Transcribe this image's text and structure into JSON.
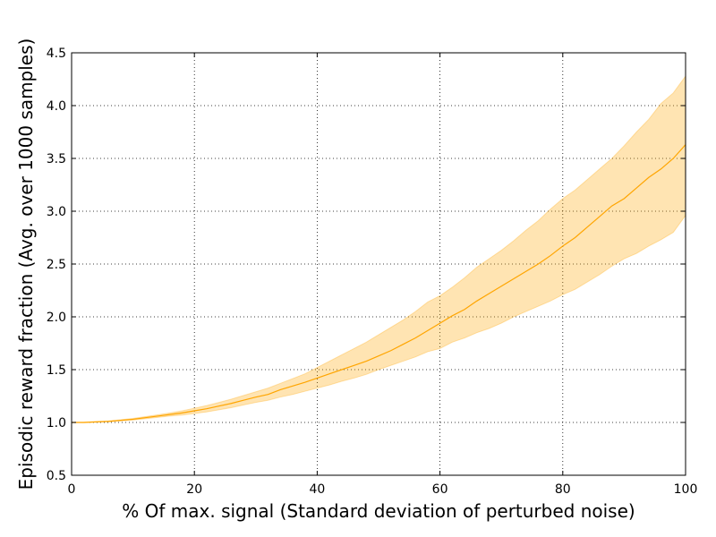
{
  "chart_data": {
    "type": "line",
    "title": "",
    "xlabel": "% Of max. signal (Standard deviation of perturbed noise)",
    "ylabel": "Episodic reward fraction (Avg. over 1000 samples)",
    "xlim": [
      0,
      100
    ],
    "ylim": [
      0.5,
      4.5
    ],
    "x_ticks": [
      0,
      20,
      40,
      60,
      80,
      100
    ],
    "y_ticks": [
      0.5,
      1.0,
      1.5,
      2.0,
      2.5,
      3.0,
      3.5,
      4.0,
      4.5
    ],
    "grid": true,
    "line_color": "#FFA500",
    "band_color": "#FFA500",
    "series": [
      {
        "x": [
          0,
          2,
          4,
          6,
          8,
          10,
          12,
          14,
          16,
          18,
          20,
          22,
          24,
          26,
          28,
          30,
          32,
          34,
          36,
          38,
          40,
          42,
          44,
          46,
          48,
          50,
          52,
          54,
          56,
          58,
          60,
          62,
          64,
          66,
          68,
          70,
          72,
          74,
          76,
          78,
          80,
          82,
          84,
          86,
          88,
          90,
          92,
          94,
          96,
          98,
          100
        ],
        "mean": [
          1.0,
          1.0,
          1.005,
          1.01,
          1.02,
          1.03,
          1.045,
          1.06,
          1.075,
          1.09,
          1.11,
          1.13,
          1.155,
          1.18,
          1.21,
          1.24,
          1.265,
          1.31,
          1.345,
          1.38,
          1.42,
          1.46,
          1.5,
          1.54,
          1.58,
          1.63,
          1.68,
          1.74,
          1.8,
          1.87,
          1.94,
          2.01,
          2.07,
          2.15,
          2.22,
          2.29,
          2.36,
          2.43,
          2.5,
          2.58,
          2.67,
          2.75,
          2.85,
          2.95,
          3.05,
          3.12,
          3.22,
          3.32,
          3.4,
          3.5,
          3.63
        ],
        "upper": [
          1.0,
          1.002,
          1.008,
          1.015,
          1.025,
          1.038,
          1.055,
          1.072,
          1.09,
          1.11,
          1.135,
          1.16,
          1.19,
          1.22,
          1.255,
          1.29,
          1.325,
          1.37,
          1.415,
          1.46,
          1.52,
          1.58,
          1.64,
          1.7,
          1.76,
          1.83,
          1.9,
          1.97,
          2.05,
          2.14,
          2.2,
          2.28,
          2.37,
          2.47,
          2.55,
          2.63,
          2.72,
          2.82,
          2.91,
          3.02,
          3.12,
          3.2,
          3.3,
          3.4,
          3.5,
          3.62,
          3.75,
          3.87,
          4.02,
          4.12,
          4.28
        ],
        "lower": [
          1.0,
          0.998,
          1.002,
          1.005,
          1.015,
          1.022,
          1.035,
          1.048,
          1.06,
          1.07,
          1.085,
          1.1,
          1.12,
          1.14,
          1.165,
          1.19,
          1.21,
          1.24,
          1.265,
          1.295,
          1.325,
          1.355,
          1.39,
          1.42,
          1.455,
          1.5,
          1.54,
          1.58,
          1.62,
          1.67,
          1.7,
          1.76,
          1.8,
          1.85,
          1.89,
          1.94,
          2.0,
          2.05,
          2.1,
          2.15,
          2.21,
          2.26,
          2.33,
          2.4,
          2.48,
          2.55,
          2.6,
          2.67,
          2.73,
          2.8,
          2.96
        ]
      }
    ]
  }
}
